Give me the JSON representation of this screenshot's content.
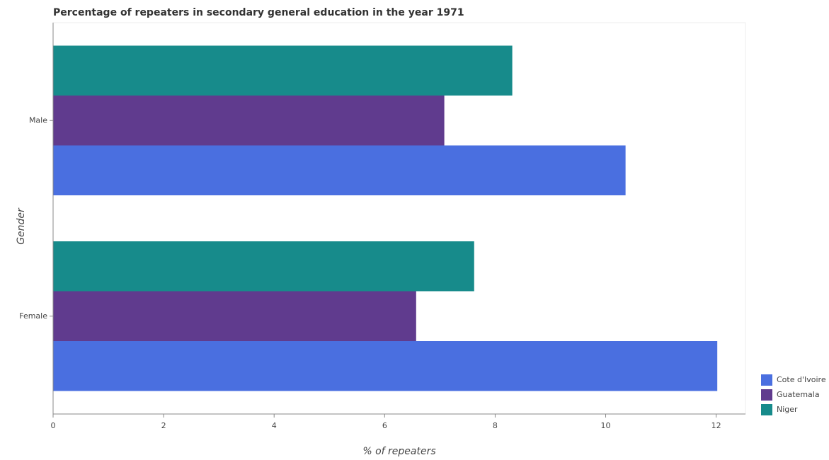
{
  "chart_data": {
    "type": "hbar",
    "title": "Percentage of repeaters in secondary general education in the year 1971",
    "xlabel": "% of repeaters",
    "ylabel": "Gender",
    "categories": [
      "Female",
      "Male"
    ],
    "series": [
      {
        "name": "Cote d'Ivoire",
        "color": "#4a6fe0",
        "values": [
          12.02,
          10.36
        ]
      },
      {
        "name": "Guatemala",
        "color": "#603b8e",
        "values": [
          6.57,
          7.08
        ]
      },
      {
        "name": "Niger",
        "color": "#178b8b",
        "values": [
          7.62,
          8.31
        ]
      }
    ],
    "xlim": [
      0,
      12.53
    ],
    "xticks": [
      0,
      2,
      4,
      6,
      8,
      10,
      12
    ],
    "legend": "lower right"
  }
}
